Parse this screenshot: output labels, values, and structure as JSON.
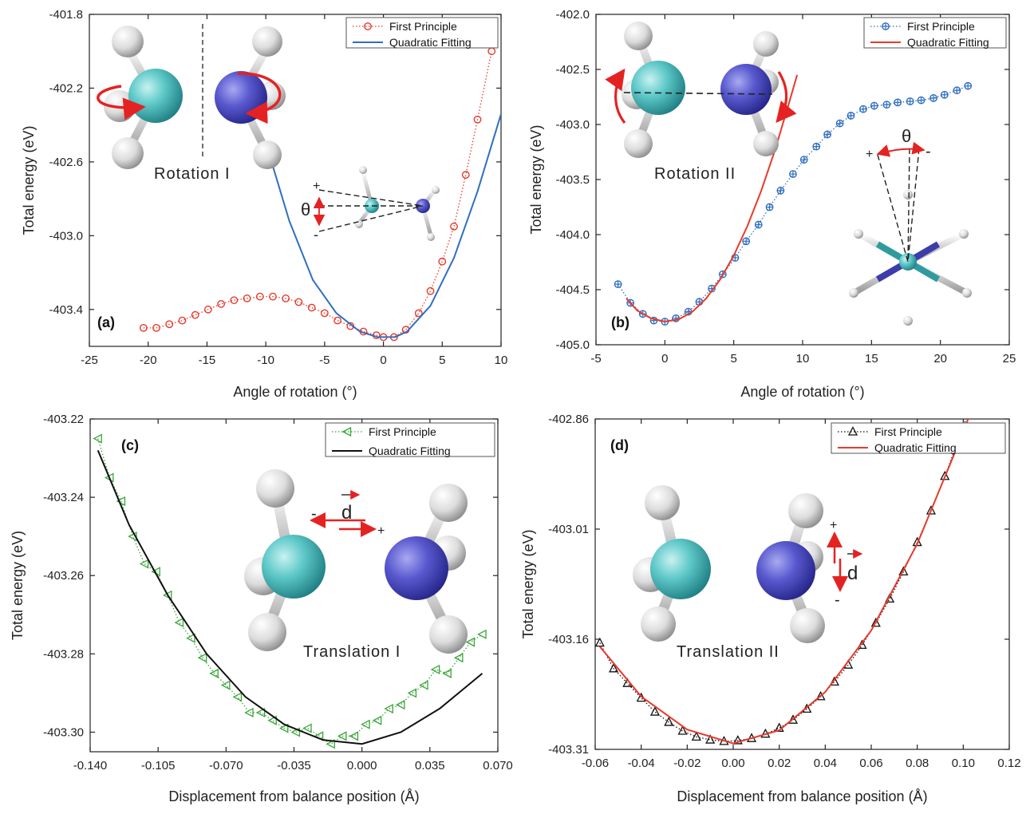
{
  "chart_data": [
    {
      "id": "a",
      "type": "scatter",
      "panel_label": "(a)",
      "xlabel": "Angle of rotation (°)",
      "ylabel": "Total energy (eV)",
      "xlim": [
        -25,
        10
      ],
      "ylim": [
        -403.6,
        -401.8
      ],
      "xticks": [
        -25,
        -20,
        -15,
        -10,
        -5,
        0,
        5,
        10
      ],
      "yticks": [
        -401.8,
        -402.2,
        -402.6,
        -403.0,
        -403.4
      ],
      "xtick_labels": [
        "-25",
        "-20",
        "-15",
        "-10",
        "-5",
        "0",
        "5",
        "10"
      ],
      "ytick_labels": [
        "-401.8",
        "-402.2",
        "-402.6",
        "-403.0",
        "-403.4"
      ],
      "legend_position": "top-right",
      "grid": false,
      "series": [
        {
          "name": "First Principle",
          "style": "dotted-markers",
          "marker": "circle",
          "color": "#e8392b",
          "x": [
            -20.4,
            -19.3,
            -18.2,
            -17.1,
            -16.0,
            -14.9,
            -13.8,
            -12.7,
            -11.6,
            -10.5,
            -9.4,
            -8.3,
            -7.2,
            -6.1,
            -5.0,
            -3.9,
            -2.8,
            -1.7,
            -0.6,
            0.0,
            0.9,
            1.9,
            3.0,
            4.0,
            5.0,
            6.0,
            7.0,
            8.0,
            9.2
          ],
          "values": [
            -403.5,
            -403.5,
            -403.48,
            -403.46,
            -403.43,
            -403.4,
            -403.37,
            -403.35,
            -403.34,
            -403.33,
            -403.33,
            -403.34,
            -403.36,
            -403.39,
            -403.42,
            -403.46,
            -403.49,
            -403.52,
            -403.54,
            -403.55,
            -403.55,
            -403.51,
            -403.42,
            -403.3,
            -403.14,
            -402.95,
            -402.67,
            -402.37,
            -402.0
          ]
        },
        {
          "name": "Quadratic Fitting",
          "style": "line",
          "color": "#2f6fbf",
          "x": [
            -9.6,
            -8,
            -6,
            -4,
            -2,
            -0.5,
            1,
            2,
            4,
            6,
            8,
            10
          ],
          "values": [
            -402.58,
            -402.92,
            -403.24,
            -403.42,
            -403.52,
            -403.55,
            -403.55,
            -403.52,
            -403.38,
            -403.12,
            -402.76,
            -402.34
          ]
        }
      ],
      "annotations": [
        "Rotation I",
        "θ",
        "+",
        "-"
      ]
    },
    {
      "id": "b",
      "type": "scatter",
      "panel_label": "(b)",
      "xlabel": "Angle of rotation (°)",
      "ylabel": "Total energy (eV)",
      "xlim": [
        -5,
        25
      ],
      "ylim": [
        -405.0,
        -402.0
      ],
      "xticks": [
        -5,
        0,
        5,
        10,
        15,
        20,
        25
      ],
      "yticks": [
        -402.0,
        -402.5,
        -403.0,
        -403.5,
        -404.0,
        -404.5,
        -405.0
      ],
      "xtick_labels": [
        "-5",
        "0",
        "5",
        "10",
        "15",
        "20",
        "25"
      ],
      "ytick_labels": [
        "-402.0",
        "-402.5",
        "-403.0",
        "-403.5",
        "-404.0",
        "-404.5",
        "-405.0"
      ],
      "legend_position": "top-right",
      "grid": false,
      "series": [
        {
          "name": "First Principle",
          "style": "dotted-markers",
          "marker": "circle-plus",
          "color": "#2f6fbf",
          "x": [
            -3.4,
            -2.5,
            -1.6,
            -0.8,
            0.0,
            0.8,
            1.7,
            2.5,
            3.4,
            4.2,
            5.1,
            5.9,
            6.8,
            7.6,
            8.4,
            9.3,
            10.1,
            11.0,
            11.8,
            12.7,
            13.5,
            14.4,
            15.2,
            16.1,
            16.9,
            17.8,
            18.6,
            19.5,
            20.3,
            21.2,
            22.0
          ],
          "values": [
            -404.45,
            -404.62,
            -404.72,
            -404.78,
            -404.79,
            -404.76,
            -404.7,
            -404.61,
            -404.49,
            -404.36,
            -404.21,
            -404.06,
            -403.91,
            -403.75,
            -403.6,
            -403.45,
            -403.32,
            -403.2,
            -403.09,
            -402.99,
            -402.92,
            -402.86,
            -402.83,
            -402.82,
            -402.8,
            -402.79,
            -402.78,
            -402.76,
            -402.73,
            -402.69,
            -402.65
          ]
        },
        {
          "name": "Quadratic Fitting",
          "style": "line",
          "color": "#e8392b",
          "x": [
            -2.8,
            -2,
            -1,
            0,
            1,
            2,
            3,
            4,
            5,
            6,
            7,
            8,
            9,
            9.6
          ],
          "values": [
            -404.58,
            -404.69,
            -404.76,
            -404.79,
            -404.77,
            -404.7,
            -404.58,
            -404.41,
            -404.19,
            -403.92,
            -403.6,
            -403.23,
            -402.81,
            -402.55
          ]
        }
      ],
      "annotations": [
        "Rotation II",
        "θ",
        "+",
        "-"
      ]
    },
    {
      "id": "c",
      "type": "scatter",
      "panel_label": "(c)",
      "xlabel": "Displacement from balance position (Å)",
      "ylabel": "Total energy (eV)",
      "xlim": [
        -0.14,
        0.07
      ],
      "ylim": [
        -403.305,
        -403.22
      ],
      "xticks": [
        -0.14,
        -0.105,
        -0.07,
        -0.035,
        0.0,
        0.035,
        0.07
      ],
      "yticks": [
        -403.22,
        -403.24,
        -403.26,
        -403.28,
        -403.3
      ],
      "xtick_labels": [
        "-0.140",
        "-0.105",
        "-0.070",
        "-0.035",
        "0.000",
        "0.035",
        "0.070"
      ],
      "ytick_labels": [
        "-403.22",
        "-403.24",
        "-403.26",
        "-403.28",
        "-403.30"
      ],
      "legend_position": "top-right",
      "grid": false,
      "series": [
        {
          "name": "First Principle",
          "style": "dotted-markers",
          "marker": "triangle-left",
          "color": "#3aa53a",
          "x": [
            -0.136,
            -0.13,
            -0.124,
            -0.118,
            -0.112,
            -0.106,
            -0.1,
            -0.094,
            -0.088,
            -0.082,
            -0.076,
            -0.07,
            -0.064,
            -0.058,
            -0.052,
            -0.046,
            -0.04,
            -0.034,
            -0.028,
            -0.022,
            -0.016,
            -0.01,
            -0.004,
            0.002,
            0.008,
            0.014,
            0.02,
            0.026,
            0.032,
            0.038,
            0.044,
            0.05,
            0.056,
            0.062
          ],
          "values": [
            -403.225,
            -403.235,
            -403.241,
            -403.25,
            -403.257,
            -403.259,
            -403.265,
            -403.272,
            -403.276,
            -403.281,
            -403.285,
            -403.288,
            -403.291,
            -403.295,
            -403.295,
            -403.297,
            -403.299,
            -403.3,
            -403.299,
            -403.301,
            -403.303,
            -403.301,
            -403.301,
            -403.298,
            -403.297,
            -403.294,
            -403.293,
            -403.29,
            -403.288,
            -403.284,
            -403.285,
            -403.281,
            -403.277,
            -403.275
          ]
        },
        {
          "name": "Quadratic Fitting",
          "style": "line",
          "color": "#111111",
          "x": [
            -0.136,
            -0.12,
            -0.1,
            -0.08,
            -0.06,
            -0.04,
            -0.02,
            0.0,
            0.02,
            0.04,
            0.062
          ],
          "values": [
            -403.228,
            -403.247,
            -403.265,
            -403.28,
            -403.291,
            -403.298,
            -403.302,
            -403.303,
            -403.3,
            -403.294,
            -403.285
          ]
        }
      ],
      "annotations": [
        "Translation I",
        "d",
        "+",
        "-"
      ]
    },
    {
      "id": "d",
      "type": "scatter",
      "panel_label": "(d)",
      "xlabel": "Displacement from balance position (Å)",
      "ylabel": "Total energy (eV)",
      "xlim": [
        -0.06,
        0.12
      ],
      "ylim": [
        -403.31,
        -402.86
      ],
      "xticks": [
        -0.06,
        -0.04,
        -0.02,
        0.0,
        0.02,
        0.04,
        0.06,
        0.08,
        0.1,
        0.12
      ],
      "yticks": [
        -402.86,
        -403.01,
        -403.16,
        -403.31
      ],
      "xtick_labels": [
        "-0.06",
        "-0.04",
        "-0.02",
        "0.00",
        "0.02",
        "0.04",
        "0.06",
        "0.08",
        "0.10",
        "0.12"
      ],
      "ytick_labels": [
        "-402.86",
        "-403.01",
        "-403.16",
        "-403.31"
      ],
      "legend_position": "top-right",
      "grid": false,
      "series": [
        {
          "name": "First Principle",
          "style": "dotted-markers",
          "marker": "triangle-up",
          "color": "#111111",
          "x": [
            -0.058,
            -0.052,
            -0.046,
            -0.04,
            -0.034,
            -0.028,
            -0.022,
            -0.016,
            -0.01,
            -0.004,
            0.002,
            0.008,
            0.014,
            0.02,
            0.026,
            0.032,
            0.038,
            0.044,
            0.05,
            0.056,
            0.062,
            0.068,
            0.074,
            0.08,
            0.086,
            0.092,
            0.098,
            0.104,
            0.108
          ],
          "values": [
            -403.165,
            -403.2,
            -403.22,
            -403.24,
            -403.259,
            -403.273,
            -403.285,
            -403.293,
            -403.297,
            -403.299,
            -403.298,
            -403.295,
            -403.289,
            -403.281,
            -403.27,
            -403.255,
            -403.238,
            -403.218,
            -403.195,
            -403.168,
            -403.138,
            -403.105,
            -403.068,
            -403.028,
            -402.985,
            -402.938,
            -402.888,
            -402.835,
            -402.8
          ]
        },
        {
          "name": "Quadratic Fitting",
          "style": "line",
          "color": "#e8392b",
          "x": [
            -0.058,
            -0.04,
            -0.02,
            0.0,
            0.02,
            0.04,
            0.06,
            0.08,
            0.1,
            0.108
          ],
          "values": [
            -403.17,
            -403.238,
            -403.283,
            -403.302,
            -403.284,
            -403.232,
            -403.148,
            -403.03,
            -402.878,
            -402.81
          ]
        }
      ],
      "annotations": [
        "Translation II",
        "d",
        "+",
        "-"
      ]
    }
  ]
}
